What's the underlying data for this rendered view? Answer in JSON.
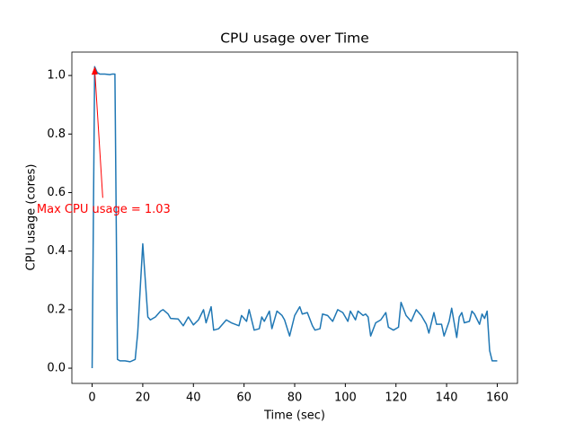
{
  "chart_data": {
    "type": "line",
    "title": "CPU usage over Time",
    "xlabel": "Time (sec)",
    "ylabel": "CPU usage (cores)",
    "x": [
      0,
      1,
      2,
      3,
      5,
      7,
      8,
      9,
      10,
      11,
      13,
      15,
      17,
      18,
      20,
      21,
      22,
      23,
      25,
      27,
      28,
      30,
      31,
      34,
      36,
      38,
      40,
      42,
      44,
      45,
      47,
      48,
      50,
      53,
      55,
      58,
      59,
      61,
      62,
      64,
      66,
      67,
      68,
      70,
      71,
      73,
      75,
      76,
      78,
      80,
      82,
      83,
      85,
      87,
      88,
      90,
      91,
      93,
      95,
      97,
      99,
      101,
      102,
      104,
      105,
      107,
      108,
      109,
      110,
      112,
      114,
      116,
      117,
      119,
      121,
      122,
      124,
      126,
      128,
      130,
      132,
      133,
      135,
      136,
      138,
      139,
      141,
      142,
      144,
      145,
      146,
      147,
      149,
      150,
      151,
      153,
      154,
      155,
      156,
      157,
      158,
      160
    ],
    "series": [
      {
        "name": "CPU usage",
        "color": "#1f77b4",
        "values": [
          0.0,
          1.03,
          1.01,
          1.005,
          1.005,
          1.003,
          1.005,
          1.005,
          0.03,
          0.025,
          0.025,
          0.022,
          0.03,
          0.12,
          0.425,
          0.3,
          0.175,
          0.165,
          0.175,
          0.195,
          0.2,
          0.185,
          0.17,
          0.168,
          0.145,
          0.175,
          0.148,
          0.165,
          0.2,
          0.155,
          0.21,
          0.13,
          0.135,
          0.165,
          0.155,
          0.145,
          0.18,
          0.16,
          0.2,
          0.13,
          0.135,
          0.175,
          0.16,
          0.195,
          0.135,
          0.195,
          0.18,
          0.165,
          0.11,
          0.18,
          0.21,
          0.185,
          0.19,
          0.145,
          0.13,
          0.135,
          0.185,
          0.18,
          0.16,
          0.2,
          0.19,
          0.16,
          0.195,
          0.165,
          0.195,
          0.18,
          0.185,
          0.175,
          0.11,
          0.155,
          0.165,
          0.19,
          0.14,
          0.13,
          0.14,
          0.225,
          0.18,
          0.16,
          0.2,
          0.18,
          0.15,
          0.12,
          0.19,
          0.15,
          0.15,
          0.11,
          0.16,
          0.205,
          0.105,
          0.175,
          0.19,
          0.155,
          0.16,
          0.195,
          0.185,
          0.15,
          0.185,
          0.17,
          0.195,
          0.06,
          0.025,
          0.025
        ]
      }
    ],
    "annotation": {
      "text": "Max CPU usage = 1.03",
      "x": 1,
      "y": 1.03,
      "color": "#ff0000"
    },
    "xlim": [
      -8,
      168
    ],
    "ylim": [
      -0.052,
      1.08
    ],
    "xticks": [
      0,
      20,
      40,
      60,
      80,
      100,
      120,
      140,
      160
    ],
    "yticks": [
      {
        "value": 0.0,
        "label": "0.0"
      },
      {
        "value": 0.2,
        "label": "0.2"
      },
      {
        "value": 0.4,
        "label": "0.4"
      },
      {
        "value": 0.6,
        "label": "0.6"
      },
      {
        "value": 0.8,
        "label": "0.8"
      },
      {
        "value": 1.0,
        "label": "1.0"
      }
    ]
  }
}
